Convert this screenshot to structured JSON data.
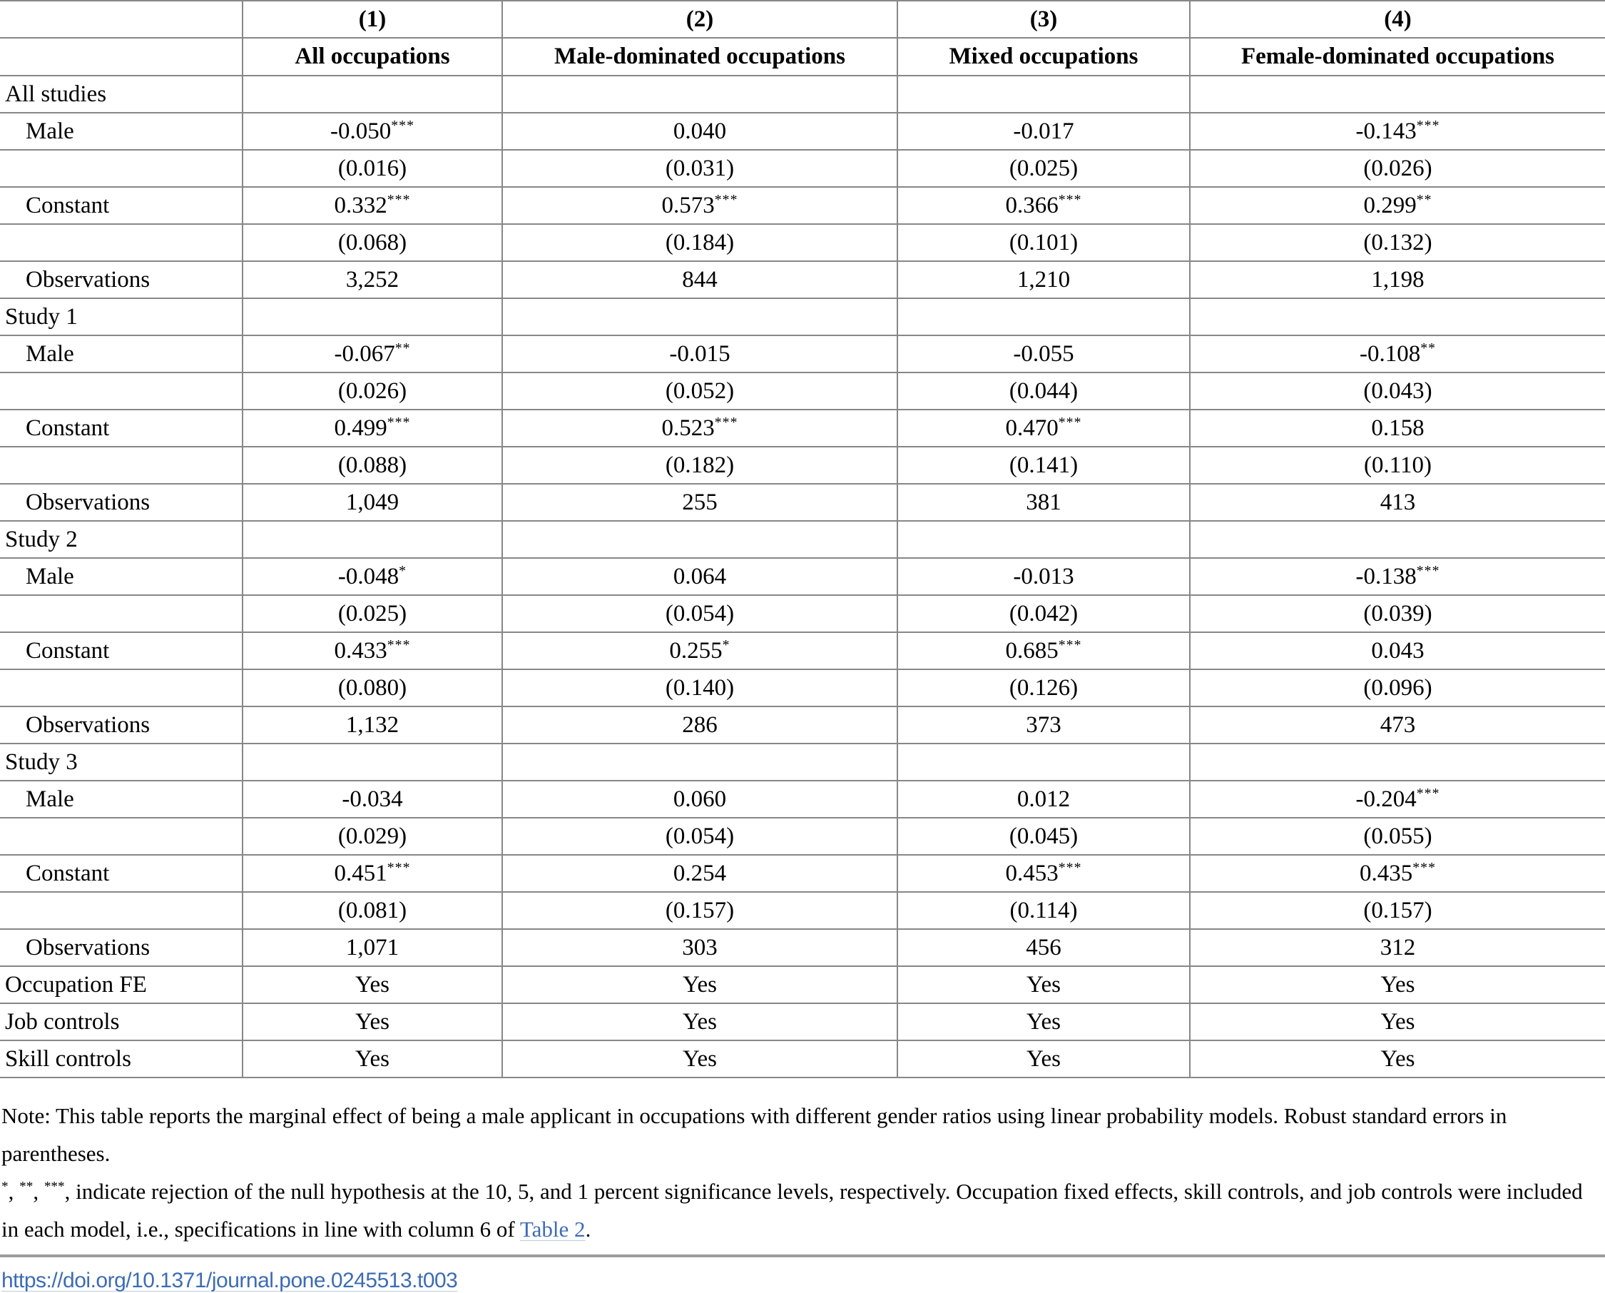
{
  "table": {
    "column_numbers": [
      "(1)",
      "(2)",
      "(3)",
      "(4)"
    ],
    "column_titles": [
      "All occupations",
      "Male-dominated occupations",
      "Mixed occupations",
      "Female-dominated occupations"
    ],
    "rows": [
      {
        "label": "All studies",
        "indent": false,
        "cells": [
          {
            "v": "",
            "sup": ""
          },
          {
            "v": "",
            "sup": ""
          },
          {
            "v": "",
            "sup": ""
          },
          {
            "v": "",
            "sup": ""
          }
        ]
      },
      {
        "label": "Male",
        "indent": true,
        "cells": [
          {
            "v": "-0.050",
            "sup": "***"
          },
          {
            "v": "0.040",
            "sup": ""
          },
          {
            "v": "-0.017",
            "sup": ""
          },
          {
            "v": "-0.143",
            "sup": "***"
          }
        ]
      },
      {
        "label": "",
        "indent": true,
        "cells": [
          {
            "v": "(0.016)",
            "sup": ""
          },
          {
            "v": "(0.031)",
            "sup": ""
          },
          {
            "v": "(0.025)",
            "sup": ""
          },
          {
            "v": "(0.026)",
            "sup": ""
          }
        ]
      },
      {
        "label": "Constant",
        "indent": true,
        "cells": [
          {
            "v": "0.332",
            "sup": "***"
          },
          {
            "v": "0.573",
            "sup": "***"
          },
          {
            "v": "0.366",
            "sup": "***"
          },
          {
            "v": "0.299",
            "sup": "**"
          }
        ]
      },
      {
        "label": "",
        "indent": true,
        "cells": [
          {
            "v": "(0.068)",
            "sup": ""
          },
          {
            "v": "(0.184)",
            "sup": ""
          },
          {
            "v": "(0.101)",
            "sup": ""
          },
          {
            "v": "(0.132)",
            "sup": ""
          }
        ]
      },
      {
        "label": "Observations",
        "indent": true,
        "cells": [
          {
            "v": "3,252",
            "sup": ""
          },
          {
            "v": "844",
            "sup": ""
          },
          {
            "v": "1,210",
            "sup": ""
          },
          {
            "v": "1,198",
            "sup": ""
          }
        ]
      },
      {
        "label": "Study 1",
        "indent": false,
        "cells": [
          {
            "v": "",
            "sup": ""
          },
          {
            "v": "",
            "sup": ""
          },
          {
            "v": "",
            "sup": ""
          },
          {
            "v": "",
            "sup": ""
          }
        ]
      },
      {
        "label": "Male",
        "indent": true,
        "cells": [
          {
            "v": "-0.067",
            "sup": "**"
          },
          {
            "v": "-0.015",
            "sup": ""
          },
          {
            "v": "-0.055",
            "sup": ""
          },
          {
            "v": "-0.108",
            "sup": "**"
          }
        ]
      },
      {
        "label": "",
        "indent": true,
        "cells": [
          {
            "v": "(0.026)",
            "sup": ""
          },
          {
            "v": "(0.052)",
            "sup": ""
          },
          {
            "v": "(0.044)",
            "sup": ""
          },
          {
            "v": "(0.043)",
            "sup": ""
          }
        ]
      },
      {
        "label": "Constant",
        "indent": true,
        "cells": [
          {
            "v": "0.499",
            "sup": "***"
          },
          {
            "v": "0.523",
            "sup": "***"
          },
          {
            "v": "0.470",
            "sup": "***"
          },
          {
            "v": "0.158",
            "sup": ""
          }
        ]
      },
      {
        "label": "",
        "indent": true,
        "cells": [
          {
            "v": "(0.088)",
            "sup": ""
          },
          {
            "v": "(0.182)",
            "sup": ""
          },
          {
            "v": "(0.141)",
            "sup": ""
          },
          {
            "v": "(0.110)",
            "sup": ""
          }
        ]
      },
      {
        "label": "Observations",
        "indent": true,
        "cells": [
          {
            "v": "1,049",
            "sup": ""
          },
          {
            "v": "255",
            "sup": ""
          },
          {
            "v": "381",
            "sup": ""
          },
          {
            "v": "413",
            "sup": ""
          }
        ]
      },
      {
        "label": "Study 2",
        "indent": false,
        "cells": [
          {
            "v": "",
            "sup": ""
          },
          {
            "v": "",
            "sup": ""
          },
          {
            "v": "",
            "sup": ""
          },
          {
            "v": "",
            "sup": ""
          }
        ]
      },
      {
        "label": "Male",
        "indent": true,
        "cells": [
          {
            "v": "-0.048",
            "sup": "*"
          },
          {
            "v": "0.064",
            "sup": ""
          },
          {
            "v": "-0.013",
            "sup": ""
          },
          {
            "v": "-0.138",
            "sup": "***"
          }
        ]
      },
      {
        "label": "",
        "indent": true,
        "cells": [
          {
            "v": "(0.025)",
            "sup": ""
          },
          {
            "v": "(0.054)",
            "sup": ""
          },
          {
            "v": "(0.042)",
            "sup": ""
          },
          {
            "v": "(0.039)",
            "sup": ""
          }
        ]
      },
      {
        "label": "Constant",
        "indent": true,
        "cells": [
          {
            "v": "0.433",
            "sup": "***"
          },
          {
            "v": "0.255",
            "sup": "*"
          },
          {
            "v": "0.685",
            "sup": "***"
          },
          {
            "v": "0.043",
            "sup": ""
          }
        ]
      },
      {
        "label": "",
        "indent": true,
        "cells": [
          {
            "v": "(0.080)",
            "sup": ""
          },
          {
            "v": "(0.140)",
            "sup": ""
          },
          {
            "v": "(0.126)",
            "sup": ""
          },
          {
            "v": "(0.096)",
            "sup": ""
          }
        ]
      },
      {
        "label": "Observations",
        "indent": true,
        "cells": [
          {
            "v": "1,132",
            "sup": ""
          },
          {
            "v": "286",
            "sup": ""
          },
          {
            "v": "373",
            "sup": ""
          },
          {
            "v": "473",
            "sup": ""
          }
        ]
      },
      {
        "label": "Study 3",
        "indent": false,
        "cells": [
          {
            "v": "",
            "sup": ""
          },
          {
            "v": "",
            "sup": ""
          },
          {
            "v": "",
            "sup": ""
          },
          {
            "v": "",
            "sup": ""
          }
        ]
      },
      {
        "label": "Male",
        "indent": true,
        "cells": [
          {
            "v": "-0.034",
            "sup": ""
          },
          {
            "v": "0.060",
            "sup": ""
          },
          {
            "v": "0.012",
            "sup": ""
          },
          {
            "v": "-0.204",
            "sup": "***"
          }
        ]
      },
      {
        "label": "",
        "indent": true,
        "cells": [
          {
            "v": "(0.029)",
            "sup": ""
          },
          {
            "v": "(0.054)",
            "sup": ""
          },
          {
            "v": "(0.045)",
            "sup": ""
          },
          {
            "v": "(0.055)",
            "sup": ""
          }
        ]
      },
      {
        "label": "Constant",
        "indent": true,
        "cells": [
          {
            "v": "0.451",
            "sup": "***"
          },
          {
            "v": "0.254",
            "sup": ""
          },
          {
            "v": "0.453",
            "sup": "***"
          },
          {
            "v": "0.435",
            "sup": "***"
          }
        ]
      },
      {
        "label": "",
        "indent": true,
        "cells": [
          {
            "v": "(0.081)",
            "sup": ""
          },
          {
            "v": "(0.157)",
            "sup": ""
          },
          {
            "v": "(0.114)",
            "sup": ""
          },
          {
            "v": "(0.157)",
            "sup": ""
          }
        ]
      },
      {
        "label": "Observations",
        "indent": true,
        "cells": [
          {
            "v": "1,071",
            "sup": ""
          },
          {
            "v": "303",
            "sup": ""
          },
          {
            "v": "456",
            "sup": ""
          },
          {
            "v": "312",
            "sup": ""
          }
        ]
      },
      {
        "label": "Occupation FE",
        "indent": false,
        "cells": [
          {
            "v": "Yes",
            "sup": ""
          },
          {
            "v": "Yes",
            "sup": ""
          },
          {
            "v": "Yes",
            "sup": ""
          },
          {
            "v": "Yes",
            "sup": ""
          }
        ]
      },
      {
        "label": "Job controls",
        "indent": false,
        "cells": [
          {
            "v": "Yes",
            "sup": ""
          },
          {
            "v": "Yes",
            "sup": ""
          },
          {
            "v": "Yes",
            "sup": ""
          },
          {
            "v": "Yes",
            "sup": ""
          }
        ]
      },
      {
        "label": "Skill controls",
        "indent": false,
        "cells": [
          {
            "v": "Yes",
            "sup": ""
          },
          {
            "v": "Yes",
            "sup": ""
          },
          {
            "v": "Yes",
            "sup": ""
          },
          {
            "v": "Yes",
            "sup": ""
          }
        ]
      }
    ]
  },
  "notes": {
    "line1": "Note: This table reports the marginal effect of being a male applicant in occupations with different gender ratios using linear probability models. Robust standard errors",
    "line2": "in parentheses.",
    "star1": "*",
    "star2": "**",
    "star3": "***",
    "star_sep": ", ",
    "line3_text": ", indicate rejection of the null hypothesis at the 10, 5, and 1 percent significance levels, respectively. Occupation fixed effects, skill controls, and job controls",
    "line4_pre": "were included in each model, i.e., specifications in line with column 6 of ",
    "table2_link": "Table 2",
    "line4_end": "."
  },
  "doi_link": "https://doi.org/10.1371/journal.pone.0245513.t003",
  "colors": {
    "border_gray": "#878787",
    "rule_gray": "#9c9c9c",
    "link_blue": "#3c6cb5",
    "text_black": "#000000"
  }
}
